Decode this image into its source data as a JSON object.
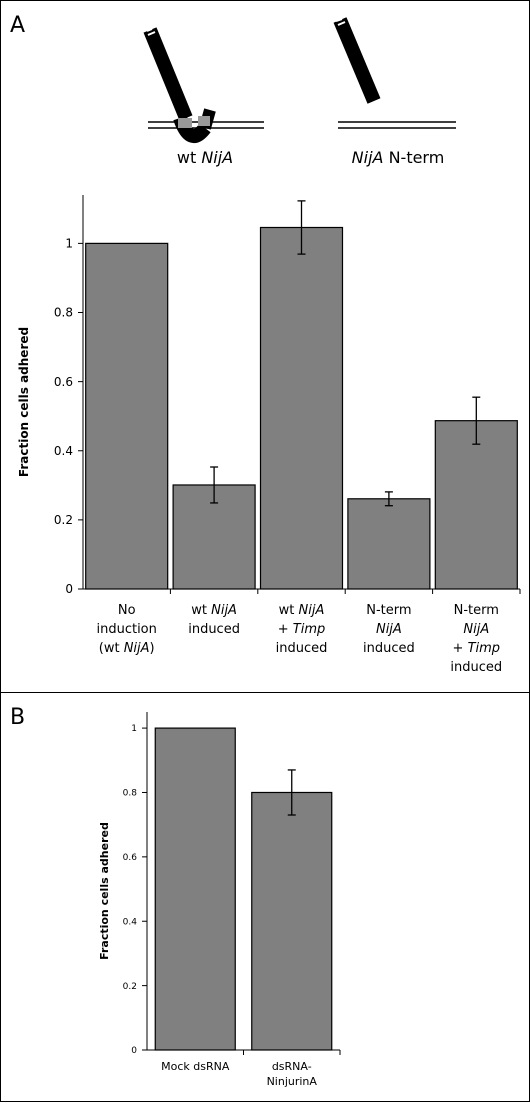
{
  "panels": [
    {
      "label": "A"
    },
    {
      "label": "B"
    }
  ],
  "diagram": {
    "labels": [
      [
        "wt ",
        {
          "text": "NijA",
          "italic": true
        }
      ],
      [
        {
          "text": "NijA",
          "italic": true
        },
        " N-term"
      ]
    ]
  },
  "chart_data": [
    {
      "type": "bar",
      "ylabel": "Fraction cells adhered",
      "categories": [
        [
          [
            "No"
          ],
          [
            "induction"
          ],
          [
            "(wt ",
            {
              "text": "NijA",
              "italic": true
            },
            ")"
          ]
        ],
        [
          [
            "wt ",
            {
              "text": "NijA",
              "italic": true
            }
          ],
          [
            "induced"
          ]
        ],
        [
          [
            "wt ",
            {
              "text": "NijA",
              "italic": true
            }
          ],
          [
            "+ ",
            {
              "text": "Timp",
              "italic": true
            }
          ],
          [
            "induced"
          ]
        ],
        [
          [
            "N-term"
          ],
          [
            {
              "text": "NijA",
              "italic": true
            }
          ],
          [
            "induced"
          ]
        ],
        [
          [
            "N-term"
          ],
          [
            {
              "text": "NijA",
              "italic": true
            }
          ],
          [
            "+ ",
            {
              "text": "Timp",
              "italic": true
            }
          ],
          [
            "induced"
          ]
        ]
      ],
      "values": [
        1,
        0.301,
        1.046,
        0.261,
        0.487
      ],
      "errors": [
        0,
        0.052,
        0.077,
        0.02,
        0.068
      ],
      "color": "#808080",
      "ylim": [
        0,
        1.14
      ],
      "yticks": [
        0,
        0.2,
        0.4,
        0.6,
        0.8,
        1
      ]
    },
    {
      "type": "bar",
      "ylabel": "Fraction cells adhered",
      "categories": [
        [
          [
            "Mock dsRNA"
          ]
        ],
        [
          [
            "dsRNA-"
          ],
          [
            "NinjurinA"
          ]
        ]
      ],
      "values": [
        1,
        0.8
      ],
      "errors": [
        0,
        0.07
      ],
      "color": "#808080",
      "ylim": [
        0,
        1.05
      ],
      "yticks": [
        0,
        0.2,
        0.4,
        0.6,
        0.8,
        1
      ]
    }
  ]
}
